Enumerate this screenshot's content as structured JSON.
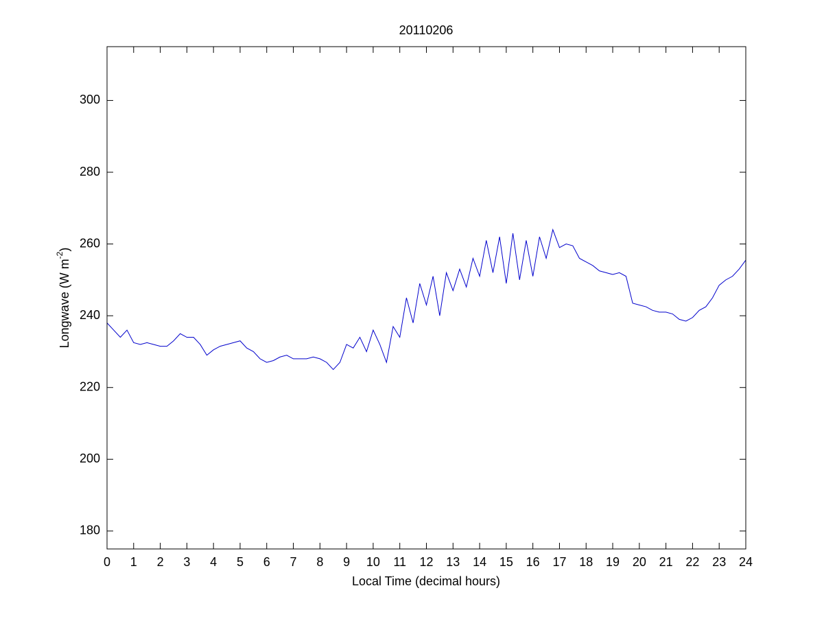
{
  "chart_data": {
    "type": "line",
    "title": "20110206",
    "xlabel": "Local Time (decimal hours)",
    "ylabel": {
      "text": "Longwave (W m",
      "superscript": "-2",
      "suffix": ")"
    },
    "x": [
      0,
      0.25,
      0.5,
      0.75,
      1,
      1.25,
      1.5,
      1.75,
      2,
      2.25,
      2.5,
      2.75,
      3,
      3.25,
      3.5,
      3.75,
      4,
      4.25,
      4.5,
      4.75,
      5,
      5.25,
      5.5,
      5.75,
      6,
      6.25,
      6.5,
      6.75,
      7,
      7.25,
      7.5,
      7.75,
      8,
      8.25,
      8.5,
      8.75,
      9,
      9.25,
      9.5,
      9.75,
      10,
      10.25,
      10.5,
      10.75,
      11,
      11.25,
      11.5,
      11.75,
      12,
      12.25,
      12.5,
      12.75,
      13,
      13.25,
      13.5,
      13.75,
      14,
      14.25,
      14.5,
      14.75,
      15,
      15.25,
      15.5,
      15.75,
      16,
      16.25,
      16.5,
      16.75,
      17,
      17.25,
      17.5,
      17.75,
      18,
      18.25,
      18.5,
      18.75,
      19,
      19.25,
      19.5,
      19.75,
      20,
      20.25,
      20.5,
      20.75,
      21,
      21.25,
      21.5,
      21.75,
      22,
      22.25,
      22.5,
      22.75,
      23,
      23.25,
      23.5,
      23.75,
      24
    ],
    "series": [
      {
        "name": "Longwave",
        "color": "#0000cc",
        "values": [
          238,
          236,
          234,
          236,
          232.5,
          232,
          232.5,
          232,
          231.5,
          231.5,
          233,
          235,
          234,
          234,
          232,
          229,
          230.5,
          231.5,
          232,
          232.5,
          233,
          231,
          230,
          228,
          227,
          227.5,
          228.5,
          229,
          228,
          228,
          228,
          228.5,
          228,
          227,
          225,
          227,
          232,
          231,
          234,
          230,
          236,
          232,
          227,
          237,
          234,
          245,
          238,
          249,
          243,
          251,
          240,
          252,
          247,
          253,
          248,
          256,
          251,
          261,
          252,
          262,
          249,
          263,
          250,
          261,
          251,
          262,
          256,
          264,
          259,
          260,
          259.5,
          256,
          255,
          254,
          252.5,
          252,
          251.5,
          252,
          251,
          243.5,
          243,
          242.5,
          241.5,
          241,
          241,
          240.5,
          239,
          238.5,
          239.5,
          241.5,
          242.5,
          245,
          248.5,
          250,
          251,
          253,
          255.5
        ]
      }
    ],
    "xlim": [
      0,
      24
    ],
    "xticks": [
      0,
      1,
      2,
      3,
      4,
      5,
      6,
      7,
      8,
      9,
      10,
      11,
      12,
      13,
      14,
      15,
      16,
      17,
      18,
      19,
      20,
      21,
      22,
      23,
      24
    ],
    "ylim": [
      175,
      315
    ],
    "yticks": [
      180,
      200,
      220,
      240,
      260,
      280,
      300
    ],
    "grid": false
  }
}
